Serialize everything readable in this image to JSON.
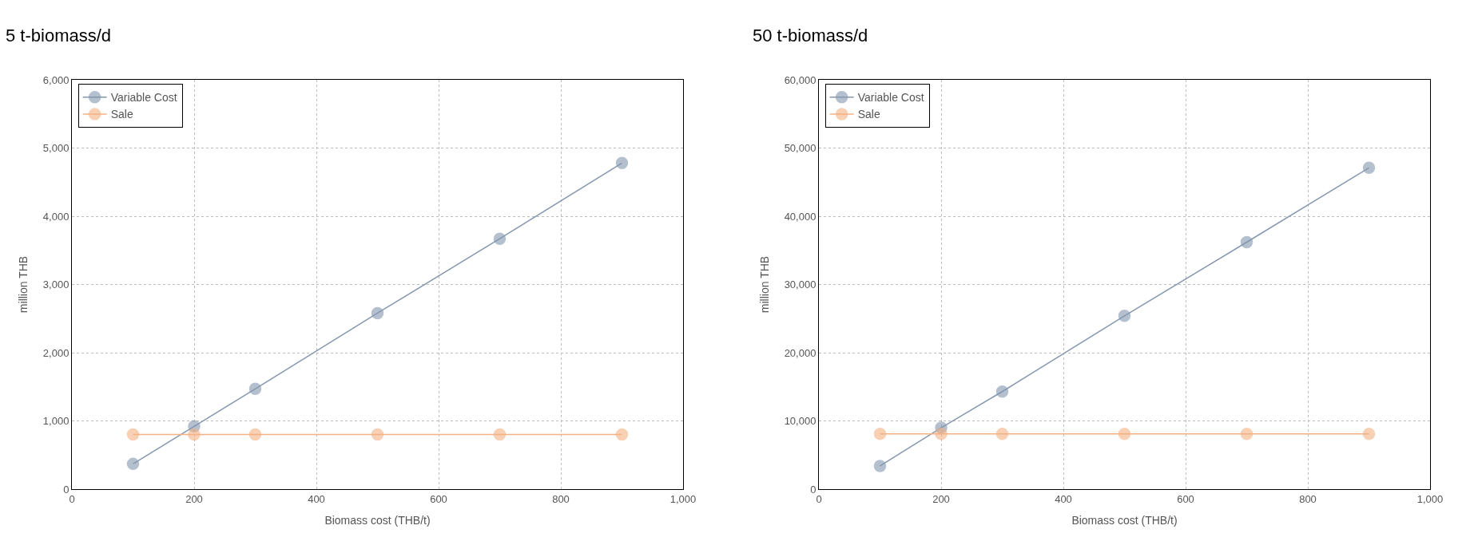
{
  "chart_data": [
    {
      "type": "line",
      "title": "5 t-biomass/d",
      "xlabel": "Biomass cost (THB/t)",
      "ylabel": "million THB",
      "x": [
        100,
        200,
        300,
        500,
        700,
        900
      ],
      "xlim": [
        0,
        1000
      ],
      "xticks": [
        0,
        200,
        400,
        600,
        800,
        {
          "value": 1000,
          "label": "1,000"
        }
      ],
      "ylim": [
        0,
        6000
      ],
      "yticks": [
        0,
        {
          "value": 1000,
          "label": "1,000"
        },
        {
          "value": 2000,
          "label": "2,000"
        },
        {
          "value": 3000,
          "label": "3,000"
        },
        {
          "value": 4000,
          "label": "4,000"
        },
        {
          "value": 5000,
          "label": "5,000"
        },
        {
          "value": 6000,
          "label": "6,000"
        }
      ],
      "grid": true,
      "legend": "top left",
      "marker": "circle",
      "line_style": "solid",
      "series": [
        {
          "name": "Variable Cost",
          "color": "#8497b0",
          "values": [
            370,
            920,
            1470,
            2580,
            3670,
            4780
          ]
        },
        {
          "name": "Sale",
          "color": "#f4b183",
          "values": [
            800,
            800,
            800,
            800,
            800,
            800
          ]
        }
      ]
    },
    {
      "type": "line",
      "title": "50 t-biomass/d",
      "xlabel": "Biomass cost (THB/t)",
      "ylabel": "million THB",
      "x": [
        100,
        200,
        300,
        500,
        700,
        900
      ],
      "xlim": [
        0,
        1000
      ],
      "xticks": [
        0,
        200,
        400,
        600,
        800,
        {
          "value": 1000,
          "label": "1,000"
        }
      ],
      "ylim": [
        0,
        60000
      ],
      "yticks": [
        0,
        {
          "value": 10000,
          "label": "10,000"
        },
        {
          "value": 20000,
          "label": "20,000"
        },
        {
          "value": 30000,
          "label": "30,000"
        },
        {
          "value": 40000,
          "label": "40,000"
        },
        {
          "value": 50000,
          "label": "50,000"
        },
        {
          "value": 60000,
          "label": "60,000"
        }
      ],
      "grid": true,
      "legend": "top left",
      "marker": "circle",
      "line_style": "solid",
      "series": [
        {
          "name": "Variable Cost",
          "color": "#8497b0",
          "values": [
            3400,
            9000,
            14300,
            25400,
            36200,
            47100
          ]
        },
        {
          "name": "Sale",
          "color": "#f4b183",
          "values": [
            8100,
            8100,
            8100,
            8100,
            8100,
            8100
          ]
        }
      ]
    }
  ]
}
